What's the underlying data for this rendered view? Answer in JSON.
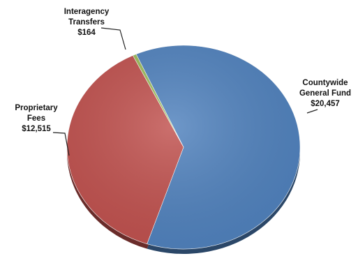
{
  "chart_data": {
    "type": "pie",
    "title": "",
    "slices": [
      {
        "name": "Countywide General Fund",
        "label_lines": [
          "Countywide",
          "General Fund",
          "$20,457"
        ],
        "value": 20457,
        "color": "#4f81bd"
      },
      {
        "name": "Proprietary Fees",
        "label_lines": [
          "Proprietary",
          "Fees",
          "$12,515"
        ],
        "value": 12515,
        "color": "#c0504d"
      },
      {
        "name": "Interagency Transfers",
        "label_lines": [
          "Interagency",
          "Transfers",
          "$164"
        ],
        "value": 164,
        "color": "#9bbb59"
      }
    ],
    "legend": "none",
    "start_angle_deg": -24,
    "direction": "clockwise"
  }
}
